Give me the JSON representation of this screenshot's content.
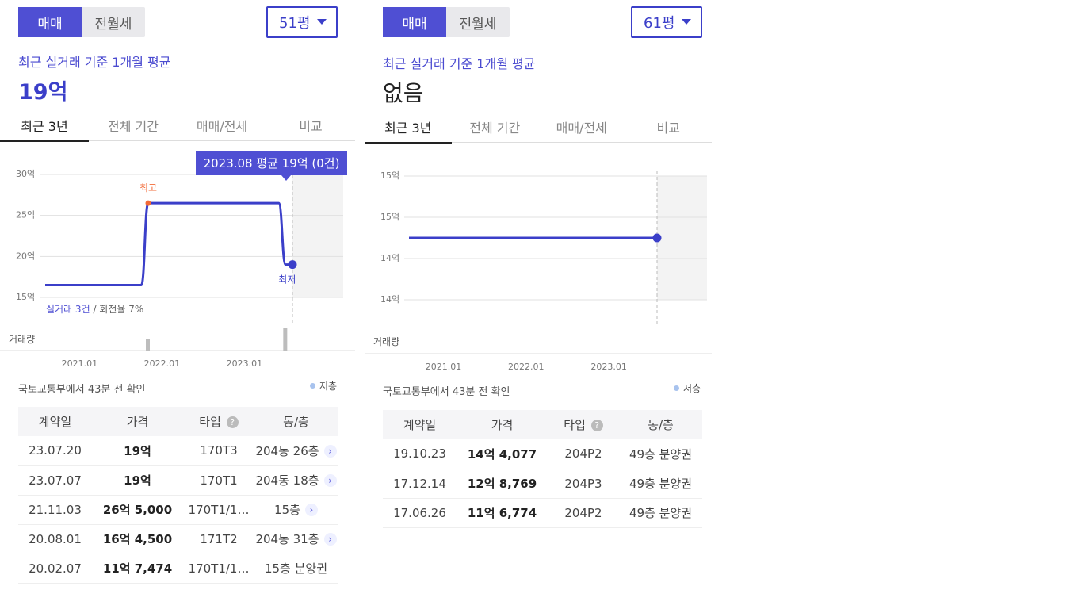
{
  "left": {
    "trade_tabs": [
      "매매",
      "전월세"
    ],
    "size": "51평",
    "subtitle": "최근 실거래 기준 1개월 평균",
    "avg_price": "19억",
    "period_tabs": [
      "최근 3년",
      "전체 기간",
      "매매/전세",
      "비교"
    ],
    "tooltip": "2023.08 평균 19억 (0건)",
    "max_label": "최고",
    "min_label": "최저",
    "stat_highlight": "실거래 3건",
    "stat_rest": " / 회전율 7%",
    "volume_label": "거래량",
    "source": "국토교통부에서 43분 전 확인",
    "legend": "저층",
    "table": {
      "headers": [
        "계약일",
        "가격",
        "타입",
        "동/층"
      ],
      "rows": [
        {
          "date": "23.07.20",
          "price": "19억",
          "type": "170T3",
          "floor": "204동 26층",
          "arrow": true
        },
        {
          "date": "23.07.07",
          "price": "19억",
          "type": "170T1",
          "floor": "204동 18층",
          "arrow": true
        },
        {
          "date": "21.11.03",
          "price": "26억 5,000",
          "type": "170T1/1…",
          "floor": "15층",
          "arrow": true
        },
        {
          "date": "20.08.01",
          "price": "16억 4,500",
          "type": "171T2",
          "floor": "204동 31층",
          "arrow": true
        },
        {
          "date": "20.02.07",
          "price": "11억 7,474",
          "type": "170T1/1…",
          "floor": "15층 분양권",
          "arrow": false
        }
      ]
    }
  },
  "right": {
    "trade_tabs": [
      "매매",
      "전월세"
    ],
    "size": "61평",
    "subtitle": "최근 실거래 기준 1개월 평균",
    "avg_price": "없음",
    "period_tabs": [
      "최근 3년",
      "전체 기간",
      "매매/전세",
      "비교"
    ],
    "volume_label": "거래량",
    "source": "국토교통부에서 43분 전 확인",
    "legend": "저층",
    "table": {
      "headers": [
        "계약일",
        "가격",
        "타입",
        "동/층"
      ],
      "rows": [
        {
          "date": "19.10.23",
          "price": "14억 4,077",
          "type": "204P2",
          "floor": "49층 분양권"
        },
        {
          "date": "17.12.14",
          "price": "12억 8,769",
          "type": "204P3",
          "floor": "49층 분양권"
        },
        {
          "date": "17.06.26",
          "price": "11억 6,774",
          "type": "204P2",
          "floor": "49층 분양권"
        }
      ]
    }
  },
  "chart_data": [
    {
      "type": "line",
      "series": [
        {
          "values": [
            16.5,
            16.5,
            26.5,
            26.5,
            19,
            19
          ]
        }
      ],
      "x": [
        "2020.08",
        "2021.10",
        "2021.11",
        "2023.06",
        "2023.07",
        "2023.08"
      ],
      "y_tick_labels": [
        "30억",
        "25억",
        "20억",
        "15억"
      ],
      "x_tick_labels": [
        "2021.01",
        "2022.01",
        "2023.01"
      ],
      "ylim": [
        15,
        30
      ],
      "volume": [
        {
          "x": "2021.11",
          "value": 1
        },
        {
          "x": "2023.07",
          "value": 2
        }
      ]
    },
    {
      "type": "line",
      "series": [
        {
          "values": [
            14.8,
            14.8
          ]
        }
      ],
      "x": [
        "2020.08",
        "2023.08"
      ],
      "y_tick_labels": [
        "15억",
        "15억",
        "14억",
        "14억"
      ],
      "x_tick_labels": [
        "2021.01",
        "2022.01",
        "2023.01"
      ],
      "ylim": [
        14.4,
        15.2
      ]
    }
  ],
  "colors": {
    "accent": "#4f4fd3",
    "line": "#3b3fc9",
    "max_marker": "#f26b38"
  }
}
